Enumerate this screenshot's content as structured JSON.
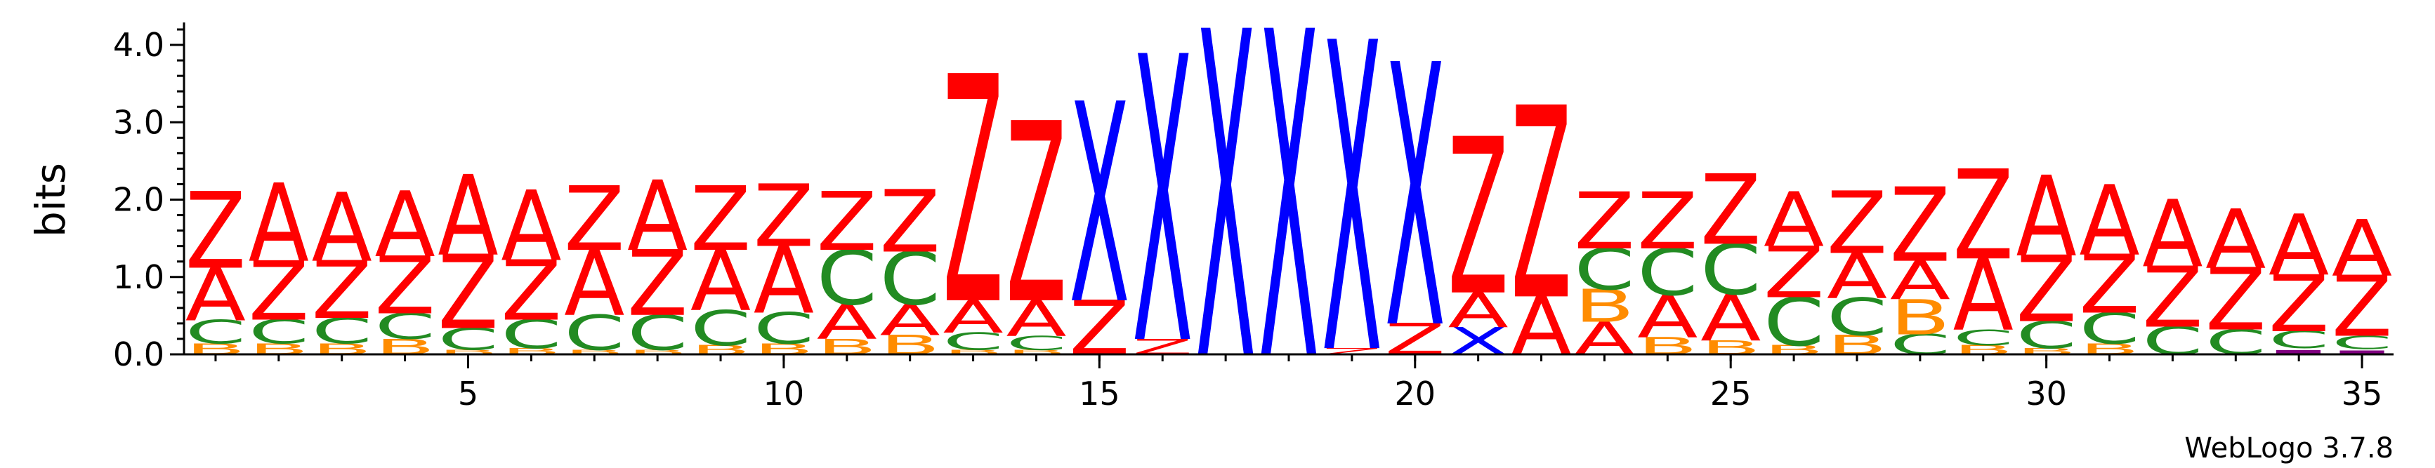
{
  "chart_data": {
    "type": "sequence-logo",
    "ylabel": "bits",
    "ylim": [
      0,
      4.2
    ],
    "y_ticks": [
      "0.0",
      "1.0",
      "2.0",
      "3.0",
      "4.0"
    ],
    "x_ticks": [
      "5",
      "10",
      "15",
      "20",
      "25",
      "30",
      "35"
    ],
    "x_tick_values": [
      5,
      10,
      15,
      20,
      25,
      30,
      35
    ],
    "positions": 35,
    "colors": {
      "A": "#ff0000",
      "Z": "#ff0000",
      "C": "#228b22",
      "B": "#ff8c00",
      "X": "#0000ff",
      "other": "#800080"
    },
    "columns": [
      {
        "pos": 1,
        "stack": [
          {
            "letter": "B",
            "height": 0.14
          },
          {
            "letter": "C",
            "height": 0.3
          },
          {
            "letter": "A",
            "height": 0.68
          },
          {
            "letter": "Z",
            "height": 0.98
          }
        ]
      },
      {
        "pos": 2,
        "stack": [
          {
            "letter": "B",
            "height": 0.14
          },
          {
            "letter": "C",
            "height": 0.31
          },
          {
            "letter": "Z",
            "height": 0.76
          },
          {
            "letter": "A",
            "height": 1.0
          }
        ]
      },
      {
        "pos": 3,
        "stack": [
          {
            "letter": "B",
            "height": 0.14
          },
          {
            "letter": "C",
            "height": 0.33
          },
          {
            "letter": "Z",
            "height": 0.74
          },
          {
            "letter": "A",
            "height": 0.88
          }
        ]
      },
      {
        "pos": 4,
        "stack": [
          {
            "letter": "B",
            "height": 0.2
          },
          {
            "letter": "C",
            "height": 0.33
          },
          {
            "letter": "Z",
            "height": 0.74
          },
          {
            "letter": "A",
            "height": 0.84
          }
        ]
      },
      {
        "pos": 5,
        "stack": [
          {
            "letter": "B",
            "height": 0.06
          },
          {
            "letter": "C",
            "height": 0.28
          },
          {
            "letter": "Z",
            "height": 0.95
          },
          {
            "letter": "A",
            "height": 1.03
          }
        ]
      },
      {
        "pos": 6,
        "stack": [
          {
            "letter": "B",
            "height": 0.08
          },
          {
            "letter": "C",
            "height": 0.37
          },
          {
            "letter": "Z",
            "height": 0.77
          },
          {
            "letter": "A",
            "height": 0.9
          }
        ]
      },
      {
        "pos": 7,
        "stack": [
          {
            "letter": "B",
            "height": 0.06
          },
          {
            "letter": "C",
            "height": 0.45
          },
          {
            "letter": "A",
            "height": 0.84
          },
          {
            "letter": "Z",
            "height": 0.82
          }
        ]
      },
      {
        "pos": 8,
        "stack": [
          {
            "letter": "B",
            "height": 0.06
          },
          {
            "letter": "C",
            "height": 0.45
          },
          {
            "letter": "Z",
            "height": 0.84
          },
          {
            "letter": "A",
            "height": 0.9
          }
        ]
      },
      {
        "pos": 9,
        "stack": [
          {
            "letter": "B",
            "height": 0.12
          },
          {
            "letter": "C",
            "height": 0.45
          },
          {
            "letter": "A",
            "height": 0.78
          },
          {
            "letter": "Z",
            "height": 0.82
          }
        ]
      },
      {
        "pos": 10,
        "stack": [
          {
            "letter": "B",
            "height": 0.14
          },
          {
            "letter": "C",
            "height": 0.4
          },
          {
            "letter": "A",
            "height": 0.86
          },
          {
            "letter": "Z",
            "height": 0.8
          }
        ]
      },
      {
        "pos": 11,
        "stack": [
          {
            "letter": "B",
            "height": 0.2
          },
          {
            "letter": "A",
            "height": 0.45
          },
          {
            "letter": "C",
            "height": 0.7
          },
          {
            "letter": "Z",
            "height": 0.75
          }
        ]
      },
      {
        "pos": 12,
        "stack": [
          {
            "letter": "B",
            "height": 0.25
          },
          {
            "letter": "A",
            "height": 0.4
          },
          {
            "letter": "C",
            "height": 0.68
          },
          {
            "letter": "Z",
            "height": 0.8
          }
        ]
      },
      {
        "pos": 13,
        "stack": [
          {
            "letter": "B",
            "height": 0.06
          },
          {
            "letter": "C",
            "height": 0.22
          },
          {
            "letter": "A",
            "height": 0.42
          },
          {
            "letter": "Z",
            "height": 2.9
          }
        ]
      },
      {
        "pos": 14,
        "stack": [
          {
            "letter": "B",
            "height": 0.06
          },
          {
            "letter": "C",
            "height": 0.18
          },
          {
            "letter": "A",
            "height": 0.46
          },
          {
            "letter": "Z",
            "height": 2.3
          }
        ]
      },
      {
        "pos": 15,
        "stack": [
          {
            "letter": "Z",
            "height": 0.7
          },
          {
            "letter": "X",
            "height": 2.55
          }
        ]
      },
      {
        "pos": 16,
        "stack": [
          {
            "letter": "Z",
            "height": 0.2
          },
          {
            "letter": "X",
            "height": 3.65
          }
        ]
      },
      {
        "pos": 17,
        "stack": [
          {
            "letter": "X",
            "height": 4.17
          }
        ]
      },
      {
        "pos": 18,
        "stack": [
          {
            "letter": "X",
            "height": 4.17
          }
        ]
      },
      {
        "pos": 19,
        "stack": [
          {
            "letter": "Z",
            "height": 0.08
          },
          {
            "letter": "X",
            "height": 3.95
          }
        ]
      },
      {
        "pos": 20,
        "stack": [
          {
            "letter": "Z",
            "height": 0.4
          },
          {
            "letter": "X",
            "height": 3.35
          }
        ]
      },
      {
        "pos": 21,
        "stack": [
          {
            "letter": "X",
            "height": 0.35
          },
          {
            "letter": "A",
            "height": 0.45
          },
          {
            "letter": "Z",
            "height": 2.0
          }
        ]
      },
      {
        "pos": 22,
        "stack": [
          {
            "letter": "A",
            "height": 0.75
          },
          {
            "letter": "Z",
            "height": 2.45
          }
        ]
      },
      {
        "pos": 23,
        "stack": [
          {
            "letter": "A",
            "height": 0.42
          },
          {
            "letter": "B",
            "height": 0.42
          },
          {
            "letter": "C",
            "height": 0.53
          },
          {
            "letter": "Z",
            "height": 0.73
          }
        ]
      },
      {
        "pos": 24,
        "stack": [
          {
            "letter": "B",
            "height": 0.22
          },
          {
            "letter": "A",
            "height": 0.55
          },
          {
            "letter": "C",
            "height": 0.6
          },
          {
            "letter": "Z",
            "height": 0.73
          }
        ]
      },
      {
        "pos": 25,
        "stack": [
          {
            "letter": "B",
            "height": 0.18
          },
          {
            "letter": "A",
            "height": 0.6
          },
          {
            "letter": "C",
            "height": 0.65
          },
          {
            "letter": "Z",
            "height": 0.9
          }
        ]
      },
      {
        "pos": 26,
        "stack": [
          {
            "letter": "B",
            "height": 0.12
          },
          {
            "letter": "C",
            "height": 0.62
          },
          {
            "letter": "Z",
            "height": 0.66
          },
          {
            "letter": "A",
            "height": 0.7
          }
        ]
      },
      {
        "pos": 27,
        "stack": [
          {
            "letter": "B",
            "height": 0.25
          },
          {
            "letter": "C",
            "height": 0.48
          },
          {
            "letter": "A",
            "height": 0.58
          },
          {
            "letter": "Z",
            "height": 0.8
          }
        ]
      },
      {
        "pos": 28,
        "stack": [
          {
            "letter": "C",
            "height": 0.26
          },
          {
            "letter": "B",
            "height": 0.45
          },
          {
            "letter": "A",
            "height": 0.5
          },
          {
            "letter": "Z",
            "height": 0.95
          }
        ]
      },
      {
        "pos": 29,
        "stack": [
          {
            "letter": "B",
            "height": 0.12
          },
          {
            "letter": "C",
            "height": 0.2
          },
          {
            "letter": "A",
            "height": 0.92
          },
          {
            "letter": "Z",
            "height": 1.15
          }
        ]
      },
      {
        "pos": 30,
        "stack": [
          {
            "letter": "B",
            "height": 0.08
          },
          {
            "letter": "C",
            "height": 0.35
          },
          {
            "letter": "Z",
            "height": 0.85
          },
          {
            "letter": "A",
            "height": 1.03
          }
        ]
      },
      {
        "pos": 31,
        "stack": [
          {
            "letter": "B",
            "height": 0.14
          },
          {
            "letter": "C",
            "height": 0.4
          },
          {
            "letter": "Z",
            "height": 0.75
          },
          {
            "letter": "A",
            "height": 0.9
          }
        ]
      },
      {
        "pos": 32,
        "stack": [
          {
            "letter": "C",
            "height": 0.36
          },
          {
            "letter": "Z",
            "height": 0.78
          },
          {
            "letter": "A",
            "height": 0.86
          }
        ]
      },
      {
        "pos": 33,
        "stack": [
          {
            "letter": "C",
            "height": 0.32
          },
          {
            "letter": "Z",
            "height": 0.8
          },
          {
            "letter": "A",
            "height": 0.76
          }
        ]
      },
      {
        "pos": 34,
        "stack": [
          {
            "letter": "other",
            "height": 0.08
          },
          {
            "letter": "C",
            "height": 0.22
          },
          {
            "letter": "Z",
            "height": 0.73
          },
          {
            "letter": "A",
            "height": 0.78
          }
        ]
      },
      {
        "pos": 35,
        "stack": [
          {
            "letter": "other",
            "height": 0.07
          },
          {
            "letter": "C",
            "height": 0.17
          },
          {
            "letter": "Z",
            "height": 0.78
          },
          {
            "letter": "A",
            "height": 0.72
          }
        ]
      }
    ]
  },
  "credit": "WebLogo 3.7.8"
}
